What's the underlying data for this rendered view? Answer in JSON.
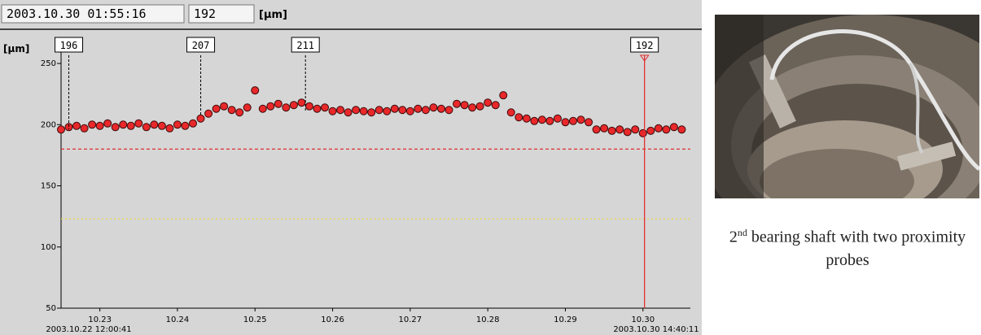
{
  "readout": {
    "time": "2003.10.30 01:55:16",
    "value": 192,
    "unit": "[µm]"
  },
  "chart_data": {
    "type": "scatter",
    "y_label": "[µm]",
    "x_range_labels": [
      "2003.10.22 12:00:41",
      "2003.10.30 14:40:11"
    ],
    "xlim": [
      22.5,
      30.611
    ],
    "ylim": [
      50,
      262
    ],
    "xticks": [
      {
        "value": 23,
        "label": "10.23"
      },
      {
        "value": 24,
        "label": "10.24"
      },
      {
        "value": 25,
        "label": "10.25"
      },
      {
        "value": 26,
        "label": "10.26"
      },
      {
        "value": 27,
        "label": "10.27"
      },
      {
        "value": 28,
        "label": "10.28"
      },
      {
        "value": 29,
        "label": "10.29"
      },
      {
        "value": 30,
        "label": "10.30"
      }
    ],
    "yticks": [
      50,
      100,
      150,
      200,
      250
    ],
    "series": [
      {
        "color": "#e8282a",
        "x": [
          22.5,
          22.6,
          22.7,
          22.8,
          22.9,
          23.0,
          23.1,
          23.2,
          23.3,
          23.4,
          23.5,
          23.6,
          23.7,
          23.8,
          23.9,
          24.0,
          24.1,
          24.2,
          24.3,
          24.4,
          24.5,
          24.6,
          24.7,
          24.8,
          24.9,
          25.0,
          25.1,
          25.2,
          25.3,
          25.4,
          25.5,
          25.6,
          25.7,
          25.8,
          25.9,
          26.0,
          26.1,
          26.2,
          26.3,
          26.4,
          26.5,
          26.6,
          26.7,
          26.8,
          26.9,
          27.0,
          27.1,
          27.2,
          27.3,
          27.4,
          27.5,
          27.6,
          27.7,
          27.8,
          27.9,
          28.0,
          28.1,
          28.2,
          28.3,
          28.4,
          28.5,
          28.6,
          28.7,
          28.8,
          28.9,
          29.0,
          29.1,
          29.2,
          29.3,
          29.4,
          29.5,
          29.6,
          29.7,
          29.8,
          29.9,
          30.0,
          30.1,
          30.2,
          30.3,
          30.4,
          30.5
        ],
        "values": [
          196,
          198,
          199,
          197,
          200,
          199,
          201,
          198,
          200,
          199,
          201,
          198,
          200,
          199,
          197,
          200,
          199,
          201,
          205,
          209,
          213,
          215,
          212,
          210,
          214,
          228,
          213,
          215,
          217,
          214,
          216,
          218,
          215,
          213,
          214,
          211,
          212,
          210,
          212,
          211,
          210,
          212,
          211,
          213,
          212,
          211,
          213,
          212,
          214,
          213,
          212,
          217,
          216,
          214,
          215,
          218,
          216,
          224,
          210,
          206,
          205,
          203,
          204,
          203,
          205,
          202,
          203,
          204,
          202,
          196,
          197,
          195,
          196,
          194,
          196,
          193,
          195,
          197,
          196,
          198,
          196
        ]
      }
    ],
    "reference_lines": [
      {
        "value": 180,
        "color": "#e03030"
      },
      {
        "value": 123,
        "color": "#e8d840"
      }
    ],
    "markers": [
      {
        "x": 22.6,
        "value": 196
      },
      {
        "x": 24.3,
        "value": 207
      },
      {
        "x": 25.65,
        "value": 211
      }
    ],
    "cursor": {
      "x": 30.02,
      "value": 192,
      "color": "#e03030"
    }
  },
  "caption": {
    "ordinal": "2",
    "suffix": "nd",
    "text": " bearing shaft with two proximity probes"
  }
}
